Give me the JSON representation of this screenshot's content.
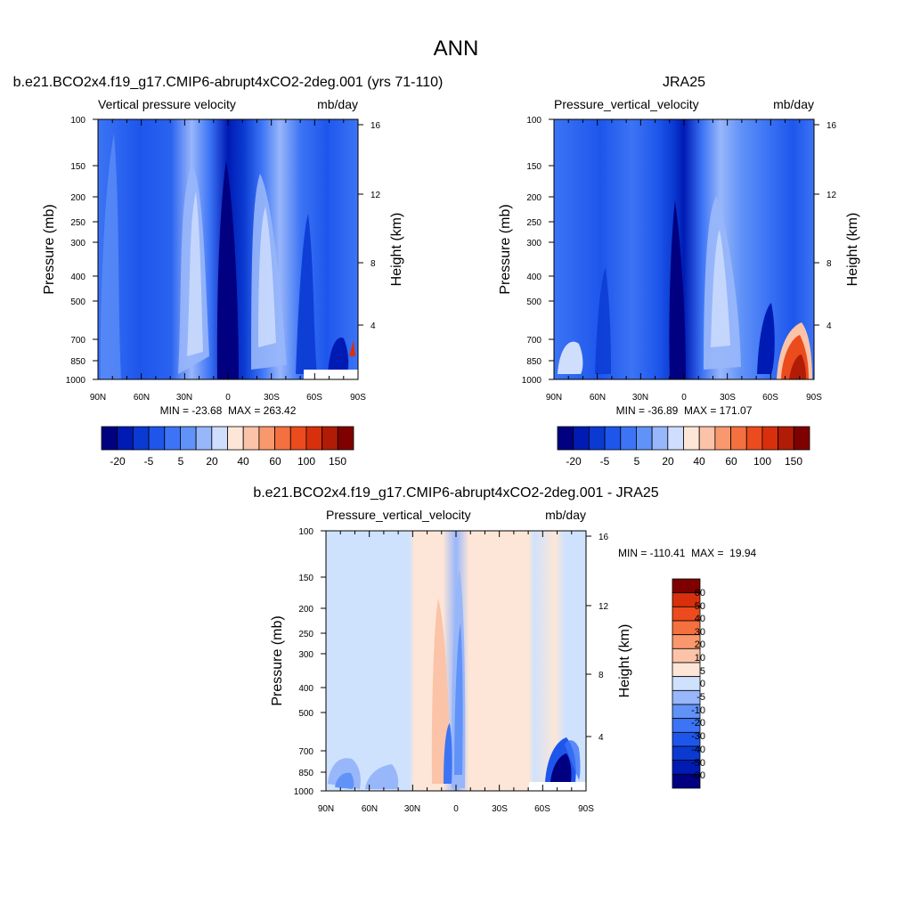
{
  "main_title": "ANN",
  "colors": {
    "model_obs_levels": [
      "#000080",
      "#001bb4",
      "#0a3ad1",
      "#1e56ec",
      "#3c74f5",
      "#6192f7",
      "#98b6fa",
      "#cfdefd",
      "#fde6d7",
      "#fbc3a8",
      "#f9986c",
      "#f4703f",
      "#ec4b1e",
      "#d8300c",
      "#b01c06",
      "#7f0000"
    ],
    "diff_levels": [
      "#000080",
      "#001bb4",
      "#0a3ad1",
      "#1e56ec",
      "#3c74f5",
      "#6192f7",
      "#98b6fa",
      "#cfe2fd",
      "#fde6d7",
      "#fbc3a8",
      "#f9986c",
      "#f4703f",
      "#ec4b1e",
      "#d8300c",
      "#7f0000"
    ]
  },
  "chart_data": [
    {
      "type": "heatmap",
      "id": "model",
      "title": "b.e21.BCO2x4.f19_g17.CMIP6-abrupt4xCO2-2deg.001 (yrs 71-110)",
      "left_label": "Vertical pressure velocity",
      "right_label": "mb/day",
      "ylabel": "Pressure (mb)",
      "y2label": "Height (km)",
      "yticks": [
        "100",
        "150",
        "200",
        "250",
        "300",
        "400",
        "500",
        "700",
        "850",
        "1000"
      ],
      "y2ticks": [
        "16",
        "12",
        "8",
        "4"
      ],
      "xticks": [
        "90N",
        "60N",
        "30N",
        "0",
        "30S",
        "60S",
        "90S"
      ],
      "stats": "MIN = -23.68  MAX = 263.42",
      "colorbar_labels": [
        "-20",
        "-5",
        "5",
        "20",
        "40",
        "60",
        "100",
        "150"
      ],
      "colorbar_levels": 16
    },
    {
      "type": "heatmap",
      "id": "obs",
      "title": "JRA25",
      "left_label": "Pressure_vertical_velocity",
      "right_label": "mb/day",
      "ylabel": "Pressure (mb)",
      "y2label": "Height (km)",
      "yticks": [
        "100",
        "150",
        "200",
        "250",
        "300",
        "400",
        "500",
        "700",
        "850",
        "1000"
      ],
      "y2ticks": [
        "16",
        "12",
        "8",
        "4"
      ],
      "xticks": [
        "90N",
        "60N",
        "30N",
        "0",
        "30S",
        "60S",
        "90S"
      ],
      "stats": "MIN = -36.89  MAX = 171.07",
      "colorbar_labels": [
        "-20",
        "-5",
        "5",
        "20",
        "40",
        "60",
        "100",
        "150"
      ],
      "colorbar_levels": 16
    },
    {
      "type": "heatmap",
      "id": "diff",
      "title": "b.e21.BCO2x4.f19_g17.CMIP6-abrupt4xCO2-2deg.001 - JRA25",
      "left_label": "Pressure_vertical_velocity",
      "right_label": "mb/day",
      "ylabel": "Pressure (mb)",
      "y2label": "Height (km)",
      "yticks": [
        "100",
        "150",
        "200",
        "250",
        "300",
        "400",
        "500",
        "700",
        "850",
        "1000"
      ],
      "y2ticks": [
        "16",
        "12",
        "8",
        "4"
      ],
      "xticks": [
        "90N",
        "60N",
        "30N",
        "0",
        "30S",
        "60S",
        "90S"
      ],
      "stats": "MIN = -110.41  MAX =  19.94",
      "colorbar_labels": [
        "60",
        "50",
        "40",
        "30",
        "20",
        "10",
        "5",
        "0",
        "-5",
        "-10",
        "-20",
        "-30",
        "-40",
        "-50",
        "-60"
      ],
      "colorbar_levels": 15
    }
  ]
}
